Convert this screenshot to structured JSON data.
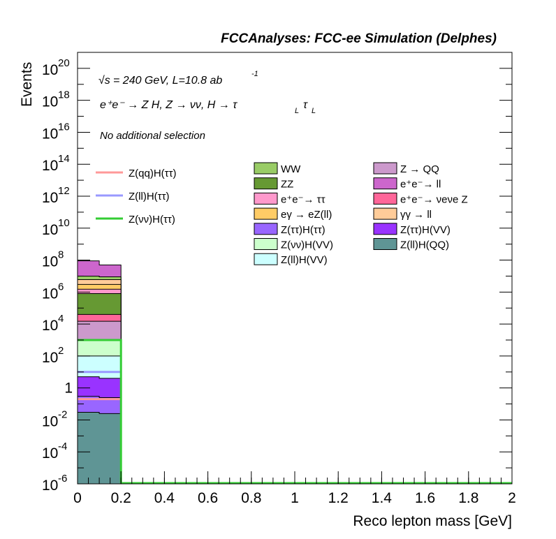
{
  "header": {
    "title": "FCCAnalyses: FCC-ee Simulation (Delphes)"
  },
  "annotations": {
    "sqrt_sym": "√s",
    "energy_text": " = 240 GeV, L=10.8 ab",
    "lumi_exp": "-1",
    "process_text": "e⁺e⁻ → Z H, Z  → νν, H → τ",
    "tau_sub1": "L",
    "tau2": "τ",
    "tau_sub2": "L",
    "selection": "No additional selection"
  },
  "chart_data": {
    "type": "bar",
    "xlabel": "Reco lepton mass [GeV]",
    "ylabel": "Events",
    "xlim": [
      0,
      2
    ],
    "ylim": [
      1e-06,
      1e+21
    ],
    "yscale": "log",
    "x_ticks": [
      "0",
      "0.2",
      "0.4",
      "0.6",
      "0.8",
      "1",
      "1.2",
      "1.4",
      "1.6",
      "1.8",
      "2"
    ],
    "y_ticks": [
      {
        "base": "10",
        "exp": "20",
        "value": 1e+20
      },
      {
        "base": "10",
        "exp": "18",
        "value": 1e+18
      },
      {
        "base": "10",
        "exp": "16",
        "value": 1e+16
      },
      {
        "base": "10",
        "exp": "14",
        "value": 100000000000000.0
      },
      {
        "base": "10",
        "exp": "12",
        "value": 1000000000000.0
      },
      {
        "base": "10",
        "exp": "10",
        "value": 10000000000.0
      },
      {
        "base": "10",
        "exp": "8",
        "value": 100000000.0
      },
      {
        "base": "10",
        "exp": "6",
        "value": 1000000.0
      },
      {
        "base": "10",
        "exp": "4",
        "value": 10000.0
      },
      {
        "base": "10",
        "exp": "2",
        "value": 100.0
      },
      {
        "base": "1",
        "exp": "",
        "value": 1
      },
      {
        "base": "10",
        "exp": "-2",
        "value": 0.01
      },
      {
        "base": "10",
        "exp": "-4",
        "value": 0.0001
      },
      {
        "base": "10",
        "exp": "-6",
        "value": 1e-06
      }
    ],
    "bin": [
      0,
      0.2
    ],
    "stack_tops": [
      {
        "name": "Z(ll)H(QQ)",
        "color": "#5f9595",
        "left": 0.03,
        "right": 0.025
      },
      {
        "name": "Z(ττ)H(ττ)",
        "color": "#9966ff",
        "left": 0.3,
        "right": 0.25
      },
      {
        "name": "Z(ττ)H(VV)",
        "color": "#9933ff",
        "left": 5,
        "right": 4
      },
      {
        "name": "Z(ll)H(VV)",
        "color": "#ccffff",
        "left": 100,
        "right": 100
      },
      {
        "name": "Z(νν)H(VV)",
        "color": "#ccffcc",
        "left": 1000,
        "right": 1000
      },
      {
        "name": "Z → QQ",
        "color": "#cc99cc",
        "left": 15000,
        "right": 15000
      },
      {
        "name": "e⁺e⁻→ νeνe Z",
        "color": "#ff6699",
        "left": 40000,
        "right": 40000
      },
      {
        "name": "ZZ",
        "color": "#669933",
        "left": 800000,
        "right": 800000
      },
      {
        "name": "e⁺e⁻→ ττ",
        "color": "#ff99cc",
        "left": 1500000,
        "right": 1500000
      },
      {
        "name": "eγ → eZ(ll)",
        "color": "#ffcc66",
        "left": 3000000,
        "right": 3000000
      },
      {
        "name": "γγ → ll",
        "color": "#ffcc99",
        "left": 6000000,
        "right": 6000000
      },
      {
        "name": "WW",
        "color": "#99cc66",
        "left": 10000000,
        "right": 9000000
      },
      {
        "name": "e⁺e⁻→ ll",
        "color": "#cc66cc",
        "left": 90000000,
        "right": 50000000
      }
    ],
    "signals": [
      {
        "name": "Z(qq)H(ττ)",
        "color": "#ff9999",
        "value": 0.2
      },
      {
        "name": "Z(ll)H(ττ)",
        "color": "#9999ff",
        "value": 10
      },
      {
        "name": "Z(νν)H(ττ)",
        "color": "#33cc33",
        "value": 1000
      }
    ],
    "legend_signals": [
      {
        "label": "Z(qq)H(ττ)",
        "color": "#ff9999"
      },
      {
        "label": "Z(ll)H(ττ)",
        "color": "#9999ff"
      },
      {
        "label": "Z(νν)H(ττ)",
        "color": "#33cc33"
      }
    ],
    "legend_bkg_col1": [
      {
        "label": "WW",
        "color": "#99cc66"
      },
      {
        "label": "ZZ",
        "color": "#669933"
      },
      {
        "label": "e⁺e⁻→ ττ",
        "color": "#ff99cc"
      },
      {
        "label": "eγ → eZ(ll)",
        "color": "#ffcc66"
      },
      {
        "label": "Z(ττ)H(ττ)",
        "color": "#9966ff"
      },
      {
        "label": "Z(νν)H(VV)",
        "color": "#ccffcc"
      },
      {
        "label": "Z(ll)H(VV)",
        "color": "#ccffff"
      }
    ],
    "legend_bkg_col2": [
      {
        "label": "Z → QQ",
        "color": "#cc99cc"
      },
      {
        "label": "e⁺e⁻→ ll",
        "color": "#cc66cc"
      },
      {
        "label": "e⁺e⁻→ νeνe Z",
        "color": "#ff6699"
      },
      {
        "label": "γγ → ll",
        "color": "#ffcc99"
      },
      {
        "label": "Z(ττ)H(VV)",
        "color": "#9933ff"
      },
      {
        "label": "Z(ll)H(QQ)",
        "color": "#5f9595"
      }
    ]
  }
}
